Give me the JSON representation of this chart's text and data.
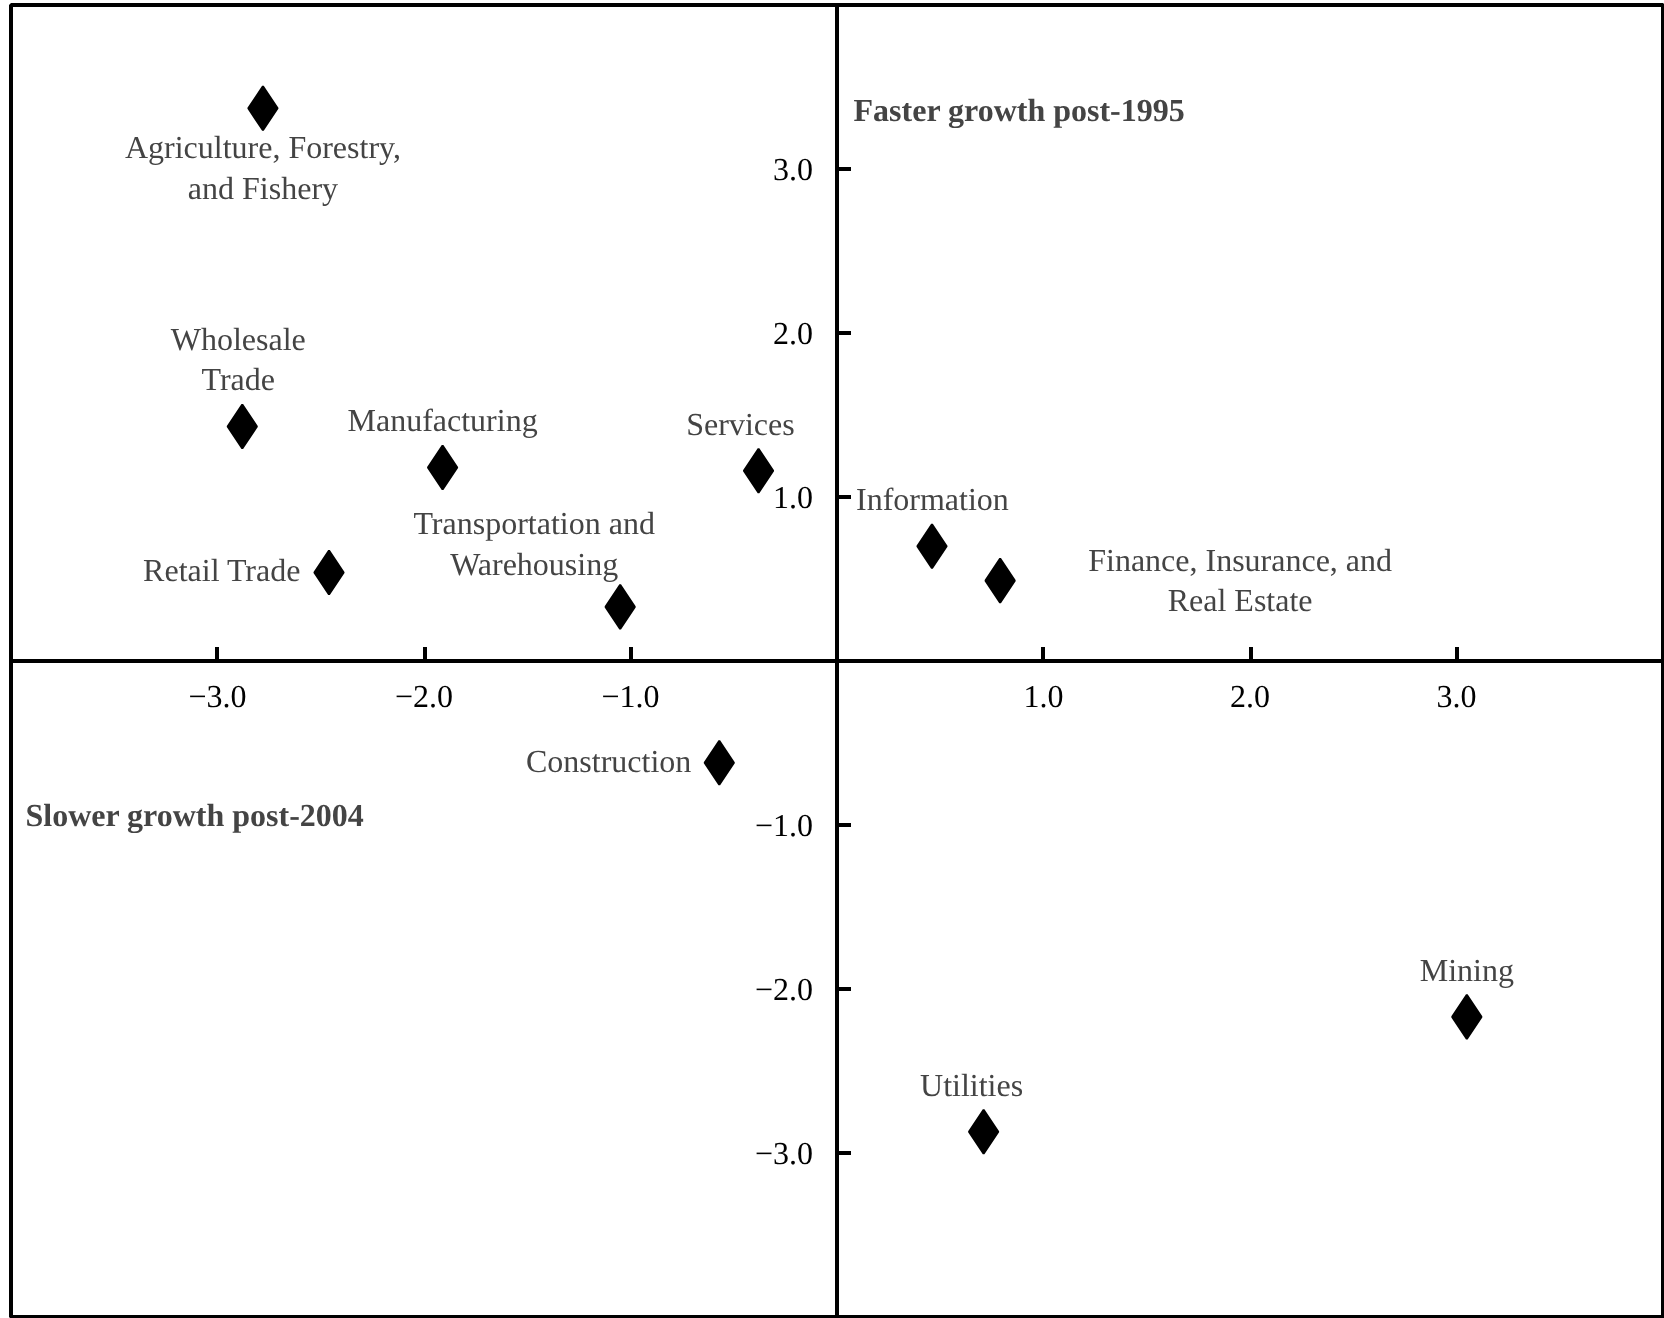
{
  "chart_data": {
    "type": "scatter",
    "marker": "diamond",
    "grid": false,
    "series": [
      {
        "color": "#000000",
        "x": [
          -2.78,
          -2.88,
          -1.91,
          -2.46,
          -1.05,
          -0.38,
          0.46,
          0.79,
          -0.57,
          3.05,
          0.71
        ],
        "values": [
          3.37,
          1.43,
          1.18,
          0.54,
          0.33,
          1.16,
          0.7,
          0.49,
          -0.62,
          -2.17,
          -2.87
        ]
      }
    ],
    "xlim": [
      -4.0,
      4.0
    ],
    "ylim": [
      -4.0,
      4.0
    ],
    "xticks": [
      {
        "value": -3,
        "label": "−3.0"
      },
      {
        "value": -2,
        "label": "−2.0"
      },
      {
        "value": -1,
        "label": "−1.0"
      },
      {
        "value": 1,
        "label": "1.0"
      },
      {
        "value": 2,
        "label": "2.0"
      },
      {
        "value": 3,
        "label": "3.0"
      }
    ],
    "yticks": [
      {
        "value": -3,
        "label": "−3.0"
      },
      {
        "value": -2,
        "label": "−2.0"
      },
      {
        "value": -1,
        "label": "−1.0"
      },
      {
        "value": 1,
        "label": "1.0"
      },
      {
        "value": 2,
        "label": "2.0"
      },
      {
        "value": 3,
        "label": "3.0"
      }
    ],
    "annotations": [
      {
        "text": "Agriculture, Forestry,\nand Fishery",
        "x": -2.78,
        "y": 3.37
      },
      {
        "text": "Wholesale\nTrade",
        "x": -2.88,
        "y": 1.43
      },
      {
        "text": "Manufacturing",
        "x": -1.91,
        "y": 1.18
      },
      {
        "text": "Retail Trade",
        "x": -2.46,
        "y": 0.54
      },
      {
        "text": "Transportation and\nWarehousing",
        "x": -1.05,
        "y": 0.33
      },
      {
        "text": "Services",
        "x": -0.38,
        "y": 1.16
      },
      {
        "text": "Information",
        "x": 0.46,
        "y": 0.7
      },
      {
        "text": "Finance, Insurance, and\nReal Estate",
        "x": 0.79,
        "y": 0.49
      },
      {
        "text": "Construction",
        "x": -0.57,
        "y": -0.62
      },
      {
        "text": "Mining",
        "x": 3.05,
        "y": -2.17
      },
      {
        "text": "Utilities",
        "x": 0.71,
        "y": -2.87
      },
      "Faster growth post-1995",
      "Slower growth post-2004"
    ]
  }
}
